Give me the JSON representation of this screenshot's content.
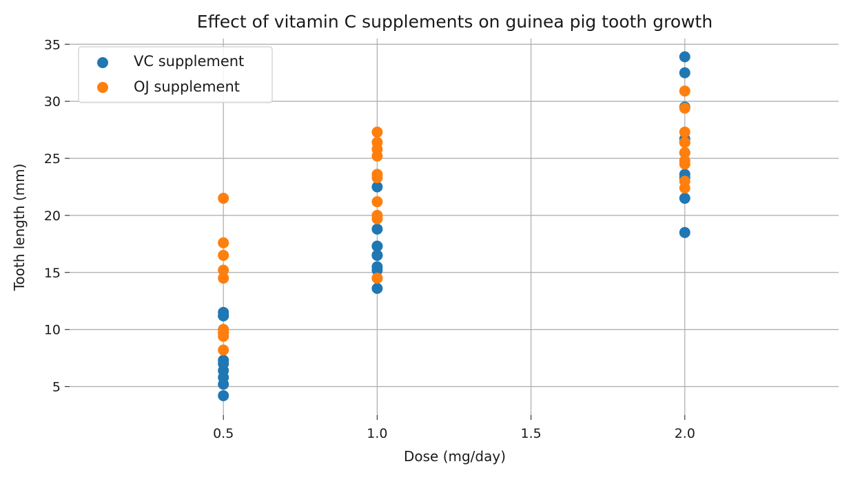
{
  "chart_data": {
    "type": "scatter",
    "title": "Effect of vitamin C supplements on guinea pig tooth growth",
    "xlabel": "Dose (mg/day)",
    "ylabel": "Tooth length (mm)",
    "xlim": [
      0.0,
      2.5
    ],
    "ylim": [
      2.5,
      35.5
    ],
    "xticks": [
      0.5,
      1.0,
      1.5,
      2.0
    ],
    "xtick_labels": [
      "0.5",
      "1.0",
      "1.5",
      "2.0"
    ],
    "yticks": [
      5,
      10,
      15,
      20,
      25,
      30,
      35
    ],
    "ytick_labels": [
      "5",
      "10",
      "15",
      "20",
      "25",
      "30",
      "35"
    ],
    "grid": true,
    "legend_position": "top-left",
    "series": [
      {
        "name": "VC supplement",
        "color": "#1f77b4",
        "points": [
          [
            0.5,
            4.2
          ],
          [
            0.5,
            11.5
          ],
          [
            0.5,
            7.3
          ],
          [
            0.5,
            5.8
          ],
          [
            0.5,
            6.4
          ],
          [
            0.5,
            10.0
          ],
          [
            0.5,
            11.2
          ],
          [
            0.5,
            11.2
          ],
          [
            0.5,
            5.2
          ],
          [
            0.5,
            7.0
          ],
          [
            1.0,
            16.5
          ],
          [
            1.0,
            16.5
          ],
          [
            1.0,
            15.2
          ],
          [
            1.0,
            17.3
          ],
          [
            1.0,
            22.5
          ],
          [
            1.0,
            17.3
          ],
          [
            1.0,
            13.6
          ],
          [
            1.0,
            14.5
          ],
          [
            1.0,
            18.8
          ],
          [
            1.0,
            15.5
          ],
          [
            2.0,
            23.6
          ],
          [
            2.0,
            18.5
          ],
          [
            2.0,
            33.9
          ],
          [
            2.0,
            25.5
          ],
          [
            2.0,
            26.4
          ],
          [
            2.0,
            32.5
          ],
          [
            2.0,
            26.7
          ],
          [
            2.0,
            21.5
          ],
          [
            2.0,
            23.3
          ],
          [
            2.0,
            29.5
          ]
        ]
      },
      {
        "name": "OJ supplement",
        "color": "#ff7f0e",
        "points": [
          [
            0.5,
            15.2
          ],
          [
            0.5,
            21.5
          ],
          [
            0.5,
            17.6
          ],
          [
            0.5,
            9.7
          ],
          [
            0.5,
            14.5
          ],
          [
            0.5,
            10.0
          ],
          [
            0.5,
            8.2
          ],
          [
            0.5,
            9.4
          ],
          [
            0.5,
            16.5
          ],
          [
            0.5,
            9.7
          ],
          [
            1.0,
            19.7
          ],
          [
            1.0,
            23.3
          ],
          [
            1.0,
            23.6
          ],
          [
            1.0,
            26.4
          ],
          [
            1.0,
            20.0
          ],
          [
            1.0,
            25.2
          ],
          [
            1.0,
            25.8
          ],
          [
            1.0,
            21.2
          ],
          [
            1.0,
            14.5
          ],
          [
            1.0,
            27.3
          ],
          [
            2.0,
            25.5
          ],
          [
            2.0,
            26.4
          ],
          [
            2.0,
            22.4
          ],
          [
            2.0,
            24.5
          ],
          [
            2.0,
            24.8
          ],
          [
            2.0,
            30.9
          ],
          [
            2.0,
            26.4
          ],
          [
            2.0,
            27.3
          ],
          [
            2.0,
            29.4
          ],
          [
            2.0,
            23.0
          ]
        ]
      }
    ]
  }
}
